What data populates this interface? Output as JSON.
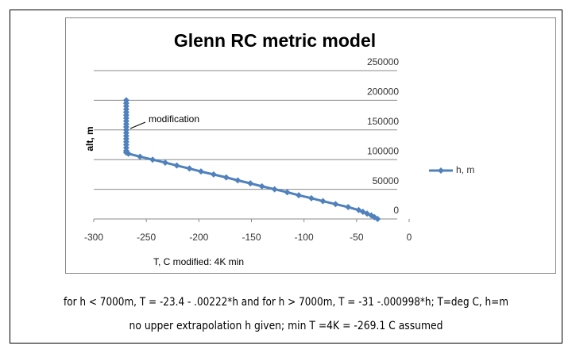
{
  "chart_data": {
    "type": "line",
    "title": "Glenn RC metric model",
    "x_label": "T, C  modified:  4K min",
    "y_label": "alt, m",
    "annotation": "modification",
    "x": [
      -30,
      -33,
      -36,
      -40,
      -44,
      -48,
      -58,
      -70,
      -82,
      -93,
      -105,
      -116,
      -128,
      -140,
      -151,
      -163,
      -174,
      -186,
      -198,
      -209,
      -221,
      -232,
      -244,
      -256,
      -267,
      -269.1,
      -269.1,
      -269.1,
      -269.1,
      -269.1,
      -269.1,
      -269.1,
      -269.1,
      -269.1,
      -269.1,
      -269.1,
      -269.1,
      -269.1,
      -269.1,
      -269.1,
      -269.1,
      -269.1,
      -269.1,
      -269.1
    ],
    "series": [
      {
        "name": "h, m",
        "color": "#4f81bd",
        "values": [
          0,
          3000,
          6000,
          9000,
          12000,
          15000,
          20000,
          25000,
          30000,
          35000,
          40000,
          45000,
          50000,
          55000,
          60000,
          65000,
          70000,
          75000,
          80000,
          85000,
          90000,
          95000,
          100000,
          105000,
          110000,
          112000,
          115000,
          120000,
          125000,
          130000,
          135000,
          140000,
          145000,
          150000,
          155000,
          160000,
          165000,
          170000,
          175000,
          180000,
          185000,
          190000,
          195000,
          200000
        ]
      }
    ],
    "xlim": [
      -300,
      0
    ],
    "xticks": [
      -300,
      -250,
      -200,
      -150,
      -100,
      -50,
      0
    ],
    "ylim": [
      0,
      250000
    ],
    "yticks": [
      0,
      50000,
      100000,
      150000,
      200000,
      250000
    ],
    "grid": true,
    "legend": "right"
  },
  "notes": [
    "for h  < 7000m, T = -23.4 -  .00222*h   and for h > 7000m, T = -31 -.000998*h;  T=deg C,  h=m",
    "no upper extrapolation h given;  min T =4K = -269.1 C assumed"
  ]
}
